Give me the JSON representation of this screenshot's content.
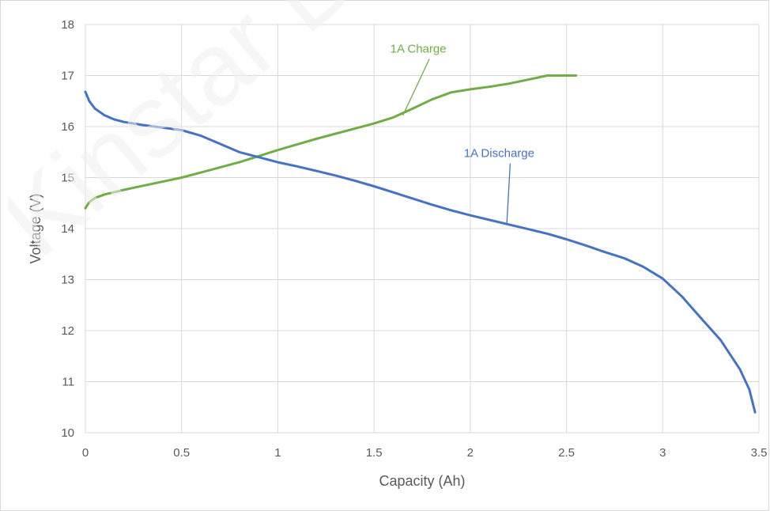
{
  "chart_data": {
    "type": "line",
    "xlabel": "Capacity (Ah)",
    "ylabel": "Voltage (V)",
    "xlim": [
      0,
      3.5
    ],
    "ylim": [
      10,
      18
    ],
    "xticks": [
      0,
      0.5,
      1,
      1.5,
      2,
      2.5,
      3,
      3.5
    ],
    "xtick_labels": [
      "0",
      "0.5",
      "1",
      "1.5",
      "2",
      "2.5",
      "3",
      "3.5"
    ],
    "yticks": [
      10,
      11,
      12,
      13,
      14,
      15,
      16,
      17,
      18
    ],
    "ytick_labels": [
      "10",
      "11",
      "12",
      "13",
      "14",
      "15",
      "16",
      "17",
      "18"
    ],
    "grid": true,
    "legend": "none",
    "series": [
      {
        "name": "1A Charge",
        "color": "#70ad47",
        "x": [
          0,
          0.02,
          0.05,
          0.1,
          0.2,
          0.3,
          0.4,
          0.5,
          0.6,
          0.7,
          0.8,
          0.9,
          1.0,
          1.1,
          1.2,
          1.3,
          1.4,
          1.5,
          1.6,
          1.7,
          1.8,
          1.9,
          2.0,
          2.1,
          2.2,
          2.3,
          2.35,
          2.4,
          2.45,
          2.5,
          2.55
        ],
        "y": [
          14.4,
          14.52,
          14.6,
          14.67,
          14.76,
          14.84,
          14.92,
          15.0,
          15.1,
          15.2,
          15.3,
          15.42,
          15.54,
          15.65,
          15.76,
          15.86,
          15.96,
          16.06,
          16.18,
          16.35,
          16.53,
          16.67,
          16.73,
          16.78,
          16.84,
          16.92,
          16.96,
          17.0,
          17.0,
          17.0,
          17.0
        ]
      },
      {
        "name": "1A Discharge",
        "color": "#4472c4",
        "x": [
          0,
          0.02,
          0.05,
          0.1,
          0.15,
          0.2,
          0.3,
          0.4,
          0.5,
          0.6,
          0.7,
          0.8,
          0.9,
          1.0,
          1.1,
          1.2,
          1.3,
          1.4,
          1.5,
          1.6,
          1.7,
          1.8,
          1.9,
          2.0,
          2.1,
          2.2,
          2.3,
          2.4,
          2.5,
          2.6,
          2.7,
          2.8,
          2.9,
          3.0,
          3.1,
          3.2,
          3.3,
          3.4,
          3.45,
          3.48
        ],
        "y": [
          16.68,
          16.5,
          16.35,
          16.22,
          16.14,
          16.09,
          16.03,
          15.98,
          15.93,
          15.82,
          15.66,
          15.5,
          15.4,
          15.3,
          15.22,
          15.13,
          15.04,
          14.94,
          14.83,
          14.71,
          14.59,
          14.47,
          14.36,
          14.26,
          14.17,
          14.08,
          13.99,
          13.9,
          13.79,
          13.67,
          13.54,
          13.42,
          13.25,
          13.02,
          12.67,
          12.24,
          11.82,
          11.25,
          10.85,
          10.4
        ]
      }
    ],
    "annotations": [
      {
        "text": "1A Charge",
        "series": 0,
        "color": "#70ad47",
        "x": 1.73,
        "y": 17.45,
        "point_x": 1.65,
        "point_y": 16.22
      },
      {
        "text": "1A Discharge",
        "series": 1,
        "color": "#4472c4",
        "x": 2.15,
        "y": 15.4,
        "point_x": 2.19,
        "point_y": 14.1
      }
    ]
  },
  "watermark": {
    "text": "Kinstar B"
  }
}
